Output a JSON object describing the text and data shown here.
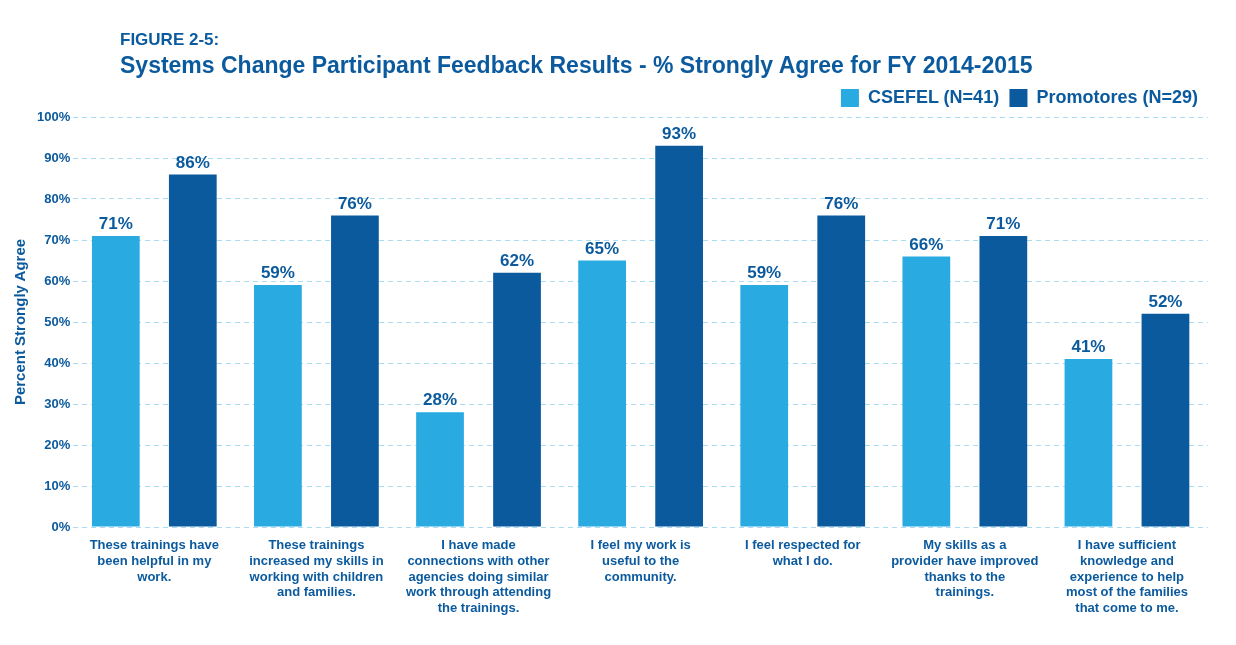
{
  "chart_data": {
    "type": "bar",
    "subtitle": "FIGURE 2-5:",
    "title": "Systems Change Participant Feedback Results - % Strongly Agree for FY 2014-2015",
    "ylabel": "Percent Strongly Agree",
    "categories": [
      "These trainings have been helpful in my work.",
      "These trainings increased my skills in working with children and families.",
      "I have made connections with other agencies doing similar work through attending the trainings.",
      "I feel my work is useful to the community.",
      "I feel respected for what I do.",
      "My skills as a provider have improved thanks to the trainings.",
      "I have sufficient knowledge and experience to help most of the families that come to me."
    ],
    "series": [
      {
        "name": "CSEFEL (N=41)",
        "color": "#29aae1",
        "values": [
          71,
          59,
          28,
          65,
          59,
          66,
          41
        ],
        "value_labels": [
          "71%",
          "59%",
          "28%",
          "65%",
          "59%",
          "66%",
          "41%"
        ]
      },
      {
        "name": "Promotores (N=29)",
        "color": "#0b5a9e",
        "values": [
          86,
          76,
          62,
          93,
          76,
          71,
          52
        ],
        "value_labels": [
          "86%",
          "76%",
          "62%",
          "93%",
          "76%",
          "71%",
          "52%"
        ]
      }
    ],
    "ylim": [
      0,
      100
    ],
    "yticks": [
      {
        "value": 0,
        "label": "0%"
      },
      {
        "value": 10,
        "label": "10%"
      },
      {
        "value": 20,
        "label": "20%"
      },
      {
        "value": 30,
        "label": "30%"
      },
      {
        "value": 40,
        "label": "40%"
      },
      {
        "value": 50,
        "label": "50%"
      },
      {
        "value": 60,
        "label": "60%"
      },
      {
        "value": 70,
        "label": "70%"
      },
      {
        "value": 80,
        "label": "80%"
      },
      {
        "value": 90,
        "label": "90%"
      },
      {
        "value": 100,
        "label": "100%"
      }
    ],
    "grid": "y",
    "legend": "top right"
  }
}
